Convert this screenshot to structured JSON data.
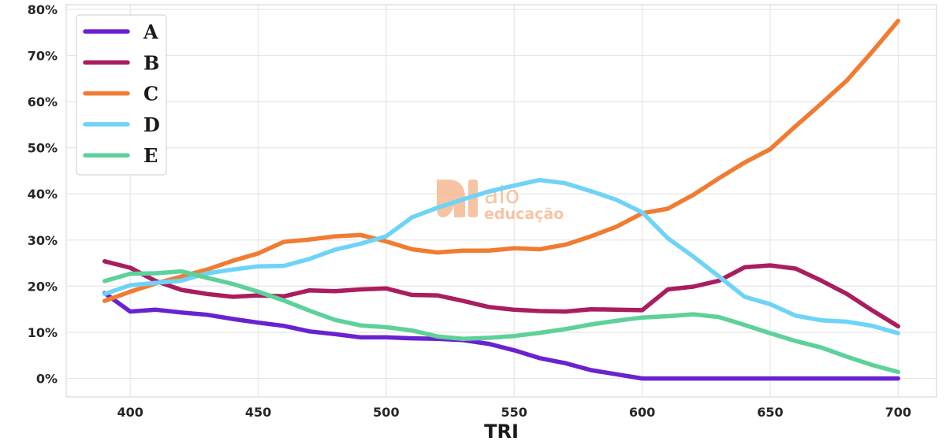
{
  "chart_data": {
    "type": "line",
    "title": "",
    "xlabel": "TRI",
    "ylabel": "",
    "xlim": [
      375,
      715
    ],
    "ylim": [
      -0.04,
      0.81
    ],
    "x_ticks": [
      400,
      450,
      500,
      550,
      600,
      650,
      700
    ],
    "y_ticks": [
      0,
      0.1,
      0.2,
      0.3,
      0.4,
      0.5,
      0.6,
      0.7,
      0.8
    ],
    "y_tick_labels": [
      "0%",
      "10%",
      "20%",
      "30%",
      "40%",
      "50%",
      "60%",
      "70%",
      "80%"
    ],
    "grid": true,
    "legend_position": "top-left",
    "x": [
      390,
      400,
      410,
      420,
      430,
      440,
      450,
      460,
      470,
      480,
      490,
      500,
      510,
      520,
      530,
      540,
      550,
      560,
      570,
      580,
      590,
      600,
      610,
      620,
      630,
      640,
      650,
      660,
      670,
      680,
      690,
      700
    ],
    "series": [
      {
        "name": "A",
        "color": "#6a22d1",
        "values": [
          0.185,
          0.145,
          0.149,
          0.143,
          0.138,
          0.129,
          0.121,
          0.114,
          0.102,
          0.096,
          0.089,
          0.089,
          0.087,
          0.086,
          0.083,
          0.075,
          0.061,
          0.044,
          0.033,
          0.018,
          0.009,
          0.0,
          0.0,
          0.0,
          0.0,
          0.0,
          0.0,
          0.0,
          0.0,
          0.0,
          0.0,
          0.0
        ]
      },
      {
        "name": "B",
        "color": "#aa1d5e",
        "values": [
          0.254,
          0.24,
          0.211,
          0.192,
          0.183,
          0.177,
          0.18,
          0.178,
          0.191,
          0.189,
          0.193,
          0.195,
          0.181,
          0.18,
          0.168,
          0.155,
          0.149,
          0.146,
          0.145,
          0.15,
          0.149,
          0.148,
          0.193,
          0.199,
          0.212,
          0.241,
          0.245,
          0.238,
          0.212,
          0.183,
          0.147,
          0.113
        ]
      },
      {
        "name": "C",
        "color": "#f07c32",
        "values": [
          0.168,
          0.188,
          0.206,
          0.221,
          0.236,
          0.255,
          0.271,
          0.296,
          0.301,
          0.308,
          0.311,
          0.297,
          0.28,
          0.273,
          0.277,
          0.277,
          0.282,
          0.28,
          0.29,
          0.308,
          0.329,
          0.358,
          0.368,
          0.398,
          0.434,
          0.468,
          0.497,
          0.547,
          0.596,
          0.646,
          0.709,
          0.775
        ]
      },
      {
        "name": "D",
        "color": "#6fd3f8",
        "values": [
          0.183,
          0.202,
          0.207,
          0.212,
          0.228,
          0.236,
          0.243,
          0.244,
          0.259,
          0.279,
          0.292,
          0.308,
          0.349,
          0.37,
          0.388,
          0.405,
          0.418,
          0.43,
          0.423,
          0.406,
          0.387,
          0.36,
          0.304,
          0.264,
          0.221,
          0.177,
          0.161,
          0.136,
          0.126,
          0.123,
          0.114,
          0.098
        ]
      },
      {
        "name": "E",
        "color": "#5ed19a",
        "values": [
          0.211,
          0.227,
          0.228,
          0.232,
          0.218,
          0.205,
          0.188,
          0.169,
          0.147,
          0.127,
          0.115,
          0.111,
          0.104,
          0.091,
          0.086,
          0.088,
          0.092,
          0.099,
          0.107,
          0.117,
          0.125,
          0.132,
          0.135,
          0.139,
          0.133,
          0.116,
          0.098,
          0.081,
          0.067,
          0.047,
          0.029,
          0.014
        ]
      }
    ]
  },
  "watermark": {
    "line1": "aio",
    "line2": "educação",
    "color": "#f4b183"
  }
}
